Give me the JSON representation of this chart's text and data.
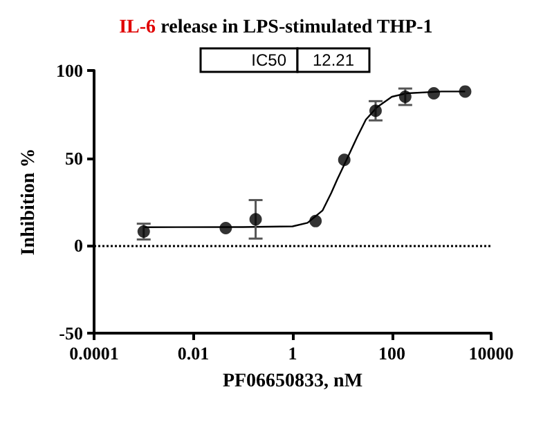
{
  "chart_data": {
    "type": "scatter",
    "title": "IL-6 release in LPS-stimulated THP-1",
    "xlabel": "PF06650833, nM",
    "ylabel": "Inhibition %",
    "annotations": [
      "IC50",
      "12.21"
    ],
    "series": [
      {
        "color": "#000000",
        "x": [
          0.001,
          0.045,
          0.18,
          2.9,
          11,
          47,
          186,
          700,
          3000
        ],
        "values": [
          8,
          10,
          15,
          14,
          49,
          77,
          85,
          87,
          88
        ],
        "errors": [
          4.5,
          null,
          [
            4,
            26
          ],
          null,
          null,
          5.5,
          4.7,
          null,
          null
        ]
      },
      {
        "type": "line",
        "color": "#000000",
        "marker": "none",
        "x": [
          0.001,
          0.1,
          1,
          2,
          4,
          6,
          8,
          12.21,
          20,
          30,
          50,
          100,
          200,
          1000,
          3000
        ],
        "values": [
          10.5,
          10.6,
          11,
          13,
          20,
          30,
          38,
          49,
          62,
          72,
          79,
          85,
          87,
          88,
          88
        ]
      }
    ],
    "log": "x",
    "xlim": [
      0.0001,
      10000
    ],
    "xticks": [
      0.0001,
      0.01,
      1,
      100,
      10000
    ],
    "ylim": [
      -50,
      100
    ],
    "yticks": [
      -50,
      0,
      50,
      100
    ],
    "ref_lines": [
      {
        "axis": "y",
        "value": 0,
        "line_style": "dotted",
        "color": "#000000"
      }
    ],
    "grid": false,
    "marker": "circle"
  }
}
